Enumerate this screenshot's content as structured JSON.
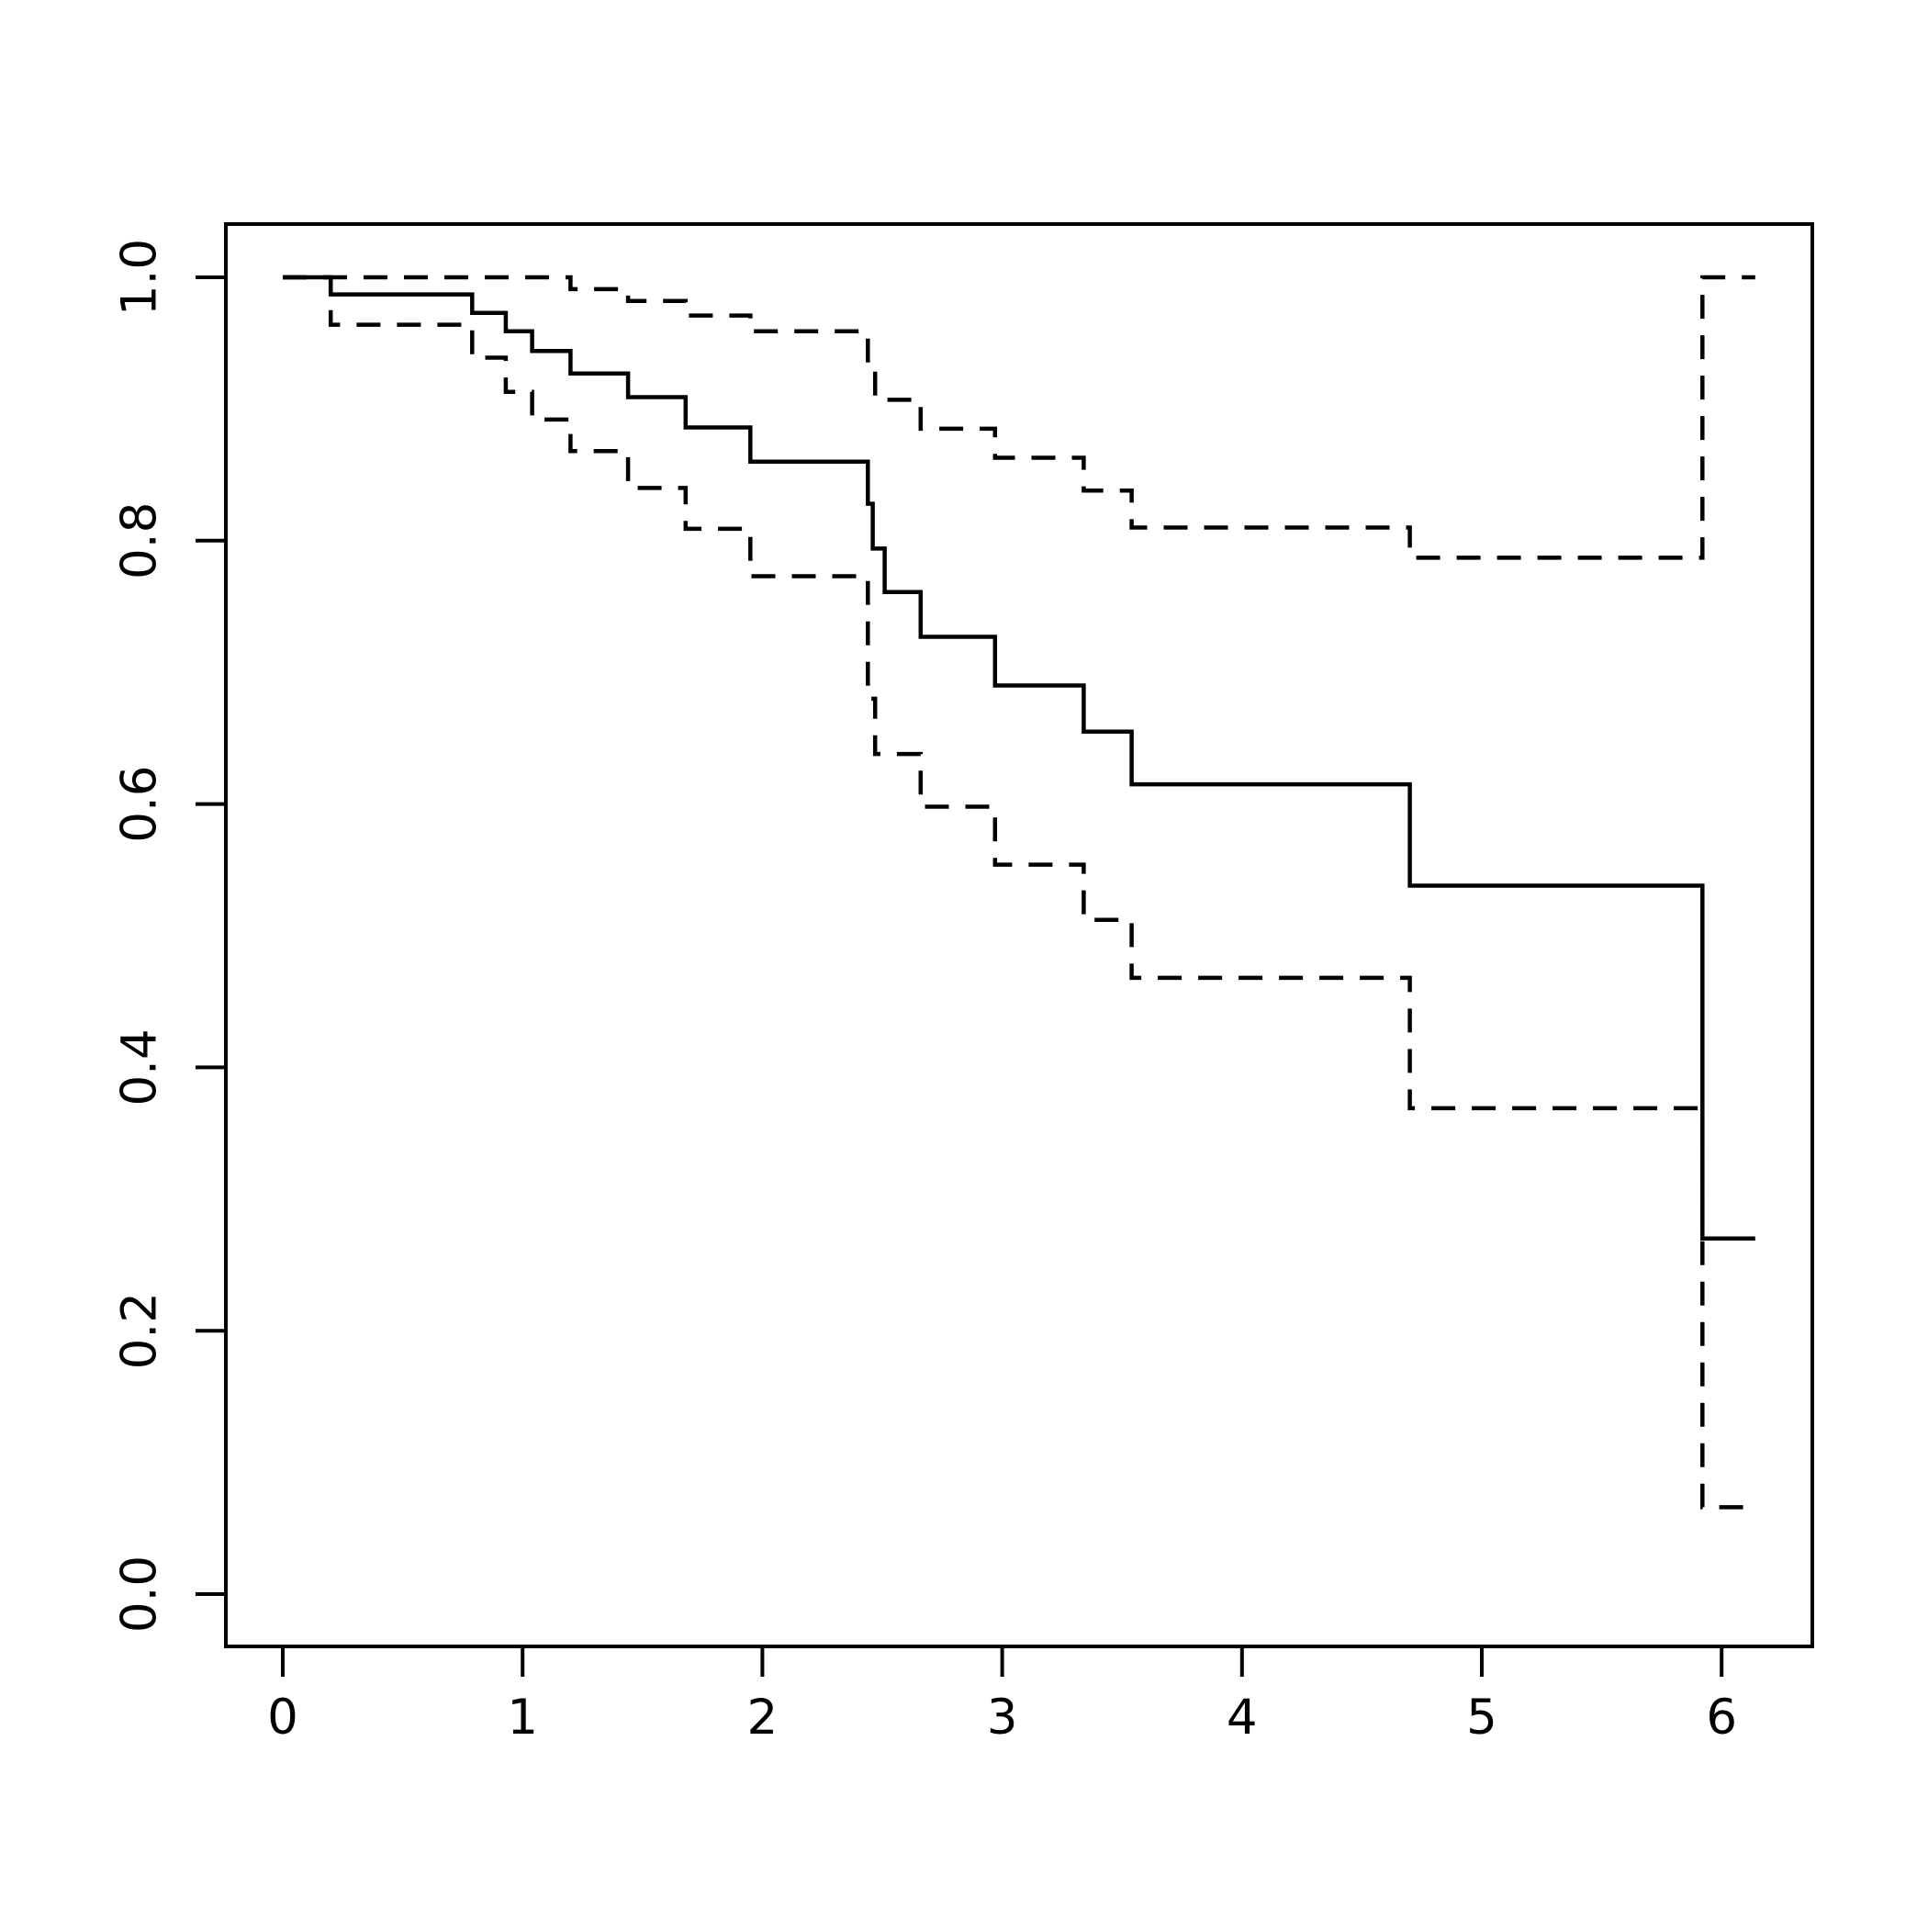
{
  "figure": {
    "background_color": "#ffffff",
    "line_color": "#000000"
  },
  "chart_data": {
    "type": "line",
    "subtype": "kaplan-meier-step",
    "title": "",
    "xlabel": "",
    "ylabel": "",
    "xlim": [
      -0.24,
      6.38
    ],
    "ylim": [
      -0.04,
      1.04
    ],
    "grid": false,
    "legend": "none",
    "x_ticks": {
      "values": [
        0,
        1,
        2,
        3,
        4,
        5,
        6
      ],
      "labels": [
        "0",
        "1",
        "2",
        "3",
        "4",
        "5",
        "6"
      ]
    },
    "y_ticks": {
      "values": [
        0.0,
        0.2,
        0.4,
        0.6,
        0.8,
        1.0
      ],
      "labels": [
        "0.0",
        "0.2",
        "0.4",
        "0.6",
        "0.8",
        "1.0"
      ]
    },
    "series": [
      {
        "name": "survival-estimate",
        "style": "solid",
        "end_time": 6.14,
        "points": [
          [
            0.0,
            1.0
          ],
          [
            0.2,
            0.987
          ],
          [
            0.79,
            0.973
          ],
          [
            0.93,
            0.959
          ],
          [
            1.04,
            0.944
          ],
          [
            1.2,
            0.927
          ],
          [
            1.44,
            0.909
          ],
          [
            1.68,
            0.886
          ],
          [
            1.95,
            0.86
          ],
          [
            2.44,
            0.828
          ],
          [
            2.46,
            0.794
          ],
          [
            2.51,
            0.761
          ],
          [
            2.66,
            0.727
          ],
          [
            2.97,
            0.69
          ],
          [
            3.34,
            0.655
          ],
          [
            3.54,
            0.615
          ],
          [
            4.7,
            0.538
          ],
          [
            5.92,
            0.27
          ]
        ]
      },
      {
        "name": "upper-confidence-band",
        "style": "dashed",
        "end_time": 6.14,
        "points": [
          [
            0.0,
            1.0
          ],
          [
            1.2,
            0.991
          ],
          [
            1.44,
            0.982
          ],
          [
            1.68,
            0.971
          ],
          [
            1.95,
            0.959
          ],
          [
            2.44,
            0.932
          ],
          [
            2.47,
            0.907
          ],
          [
            2.66,
            0.885
          ],
          [
            2.97,
            0.863
          ],
          [
            3.34,
            0.838
          ],
          [
            3.54,
            0.81
          ],
          [
            4.7,
            0.787
          ],
          [
            5.92,
            1.0
          ]
        ]
      },
      {
        "name": "lower-confidence-band",
        "style": "dashed",
        "end_time": 6.14,
        "points": [
          [
            0.0,
            1.0
          ],
          [
            0.2,
            0.964
          ],
          [
            0.79,
            0.939
          ],
          [
            0.93,
            0.913
          ],
          [
            1.04,
            0.892
          ],
          [
            1.2,
            0.868
          ],
          [
            1.44,
            0.84
          ],
          [
            1.68,
            0.809
          ],
          [
            1.95,
            0.773
          ],
          [
            2.44,
            0.68
          ],
          [
            2.47,
            0.638
          ],
          [
            2.66,
            0.598
          ],
          [
            2.97,
            0.554
          ],
          [
            3.34,
            0.512
          ],
          [
            3.54,
            0.468
          ],
          [
            4.7,
            0.369
          ],
          [
            5.92,
            0.066
          ]
        ]
      }
    ]
  }
}
